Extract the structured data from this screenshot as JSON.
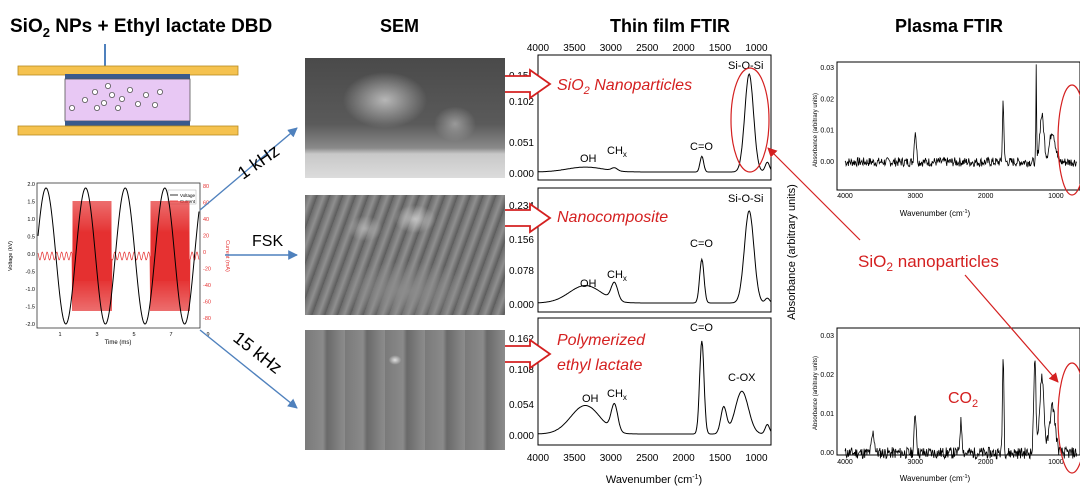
{
  "titles": {
    "dbd_main": "SiO",
    "dbd_sub": "2",
    "dbd_rest": " NPs + Ethyl lactate DBD",
    "sem": "SEM",
    "thin_film": "Thin film FTIR",
    "plasma": "Plasma FTIR"
  },
  "frequencies": [
    "1 kHz",
    "FSK",
    "15 kHz"
  ],
  "waveform": {
    "legend": [
      "Voltage",
      "Current"
    ],
    "ylabel_left": "Voltage (kV)",
    "ylabel_right": "Current (mA)",
    "xlabel": "Time (ms)",
    "left_ticks": [
      "2.0",
      "1.5",
      "1.0",
      "0.5",
      "0.0",
      "-0.5",
      "-1.0",
      "-1.5",
      "-2.0"
    ],
    "right_ticks": [
      "80",
      "60",
      "40",
      "20",
      "0",
      "-20",
      "-40",
      "-60",
      "-80"
    ],
    "x_ticks": [
      "1",
      "3",
      "5",
      "7",
      "9"
    ],
    "colors": {
      "voltage": "#000000",
      "current": "#e53030"
    }
  },
  "thin_film": {
    "top_ticks": [
      "4000",
      "3500",
      "3000",
      "2500",
      "2000",
      "1500",
      "1000"
    ],
    "bottom_ticks": [
      "4000",
      "3500",
      "3000",
      "2500",
      "2000",
      "1500",
      "1000"
    ],
    "xlabel_pre": "Wavenumber (cm",
    "xlabel_sup": "-1",
    "xlabel_post": ")",
    "ylabel": "Absorbance (arbitrary units)",
    "panels": [
      {
        "label_pre": "SiO",
        "label_sub": "2",
        "label_post": " Nanoparticles",
        "yticks": [
          "0.153",
          "0.102",
          "0.051",
          "0.000"
        ],
        "oh": "OH",
        "ch": "CH",
        "ch_sub": "x",
        "co": "C=O",
        "sios": "Si-O-Si"
      },
      {
        "label_pre": "Nanocomposite",
        "yticks": [
          "0.234",
          "0.156",
          "0.078",
          "0.000"
        ],
        "oh": "OH",
        "ch": "CH",
        "ch_sub": "x",
        "co": "C=O",
        "sios": "Si-O-Si"
      },
      {
        "label_line1": "Polymerized",
        "label_line2": "ethyl lactate",
        "yticks": [
          "0.162",
          "0.108",
          "0.054",
          "0.000"
        ],
        "oh": "OH",
        "ch": "CH",
        "ch_sub": "x",
        "co": "C=O",
        "cox": "C-OX"
      }
    ]
  },
  "plasma": {
    "panels": [
      {
        "x_ticks": [
          "4000",
          "3000",
          "2000",
          "1000"
        ],
        "y_ticks": [
          "0.03",
          "0.02",
          "0.01",
          "0.00"
        ],
        "ylabel": "Absorbance (arbitrary units)"
      },
      {
        "x_ticks": [
          "4000",
          "3000",
          "2000",
          "1000"
        ],
        "y_ticks": [
          "0.03",
          "0.02",
          "0.01",
          "0.00"
        ],
        "ylabel": "Absorbance (arbitrary units)",
        "co2_pre": "CO",
        "co2_sub": "2"
      }
    ],
    "xlabel_pre": "Wavenumber (cm",
    "xlabel_sup": "-1",
    "xlabel_post": ")",
    "sio2_pre": "SiO",
    "sio2_sub": "2",
    "sio2_post": " nanoparticles"
  },
  "colors": {
    "red_label": "#d42020",
    "arrow_blue": "#4f81bd",
    "plasma_purple": "#e8c8f4",
    "electrode": "#f5c24f",
    "dielectric": "#3a5a8c"
  }
}
